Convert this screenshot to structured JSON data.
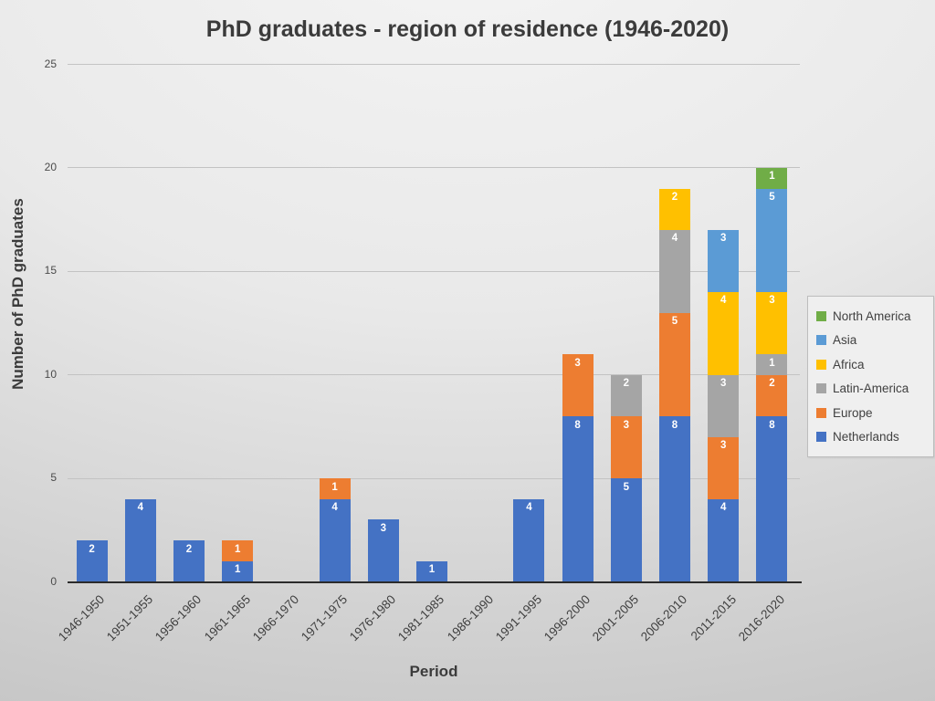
{
  "chart_data": {
    "type": "bar",
    "stacked": true,
    "title": "PhD graduates - region of residence (1946-2020)",
    "xlabel": "Period",
    "ylabel": "Number of PhD graduates",
    "ylim": [
      0,
      25
    ],
    "yticks": [
      0,
      5,
      10,
      15,
      20,
      25
    ],
    "grid": true,
    "data_labels": "inside-end, white, zeros hidden",
    "categories": [
      "1946-1950",
      "1951-1955",
      "1956-1960",
      "1961-1965",
      "1966-1970",
      "1971-1975",
      "1976-1980",
      "1981-1985",
      "1986-1990",
      "1991-1995",
      "1996-2000",
      "2001-2005",
      "2006-2010",
      "2011-2015",
      "2016-2020"
    ],
    "series": [
      {
        "name": "Netherlands",
        "color": "#4472C4",
        "values": [
          2,
          4,
          2,
          1,
          0,
          4,
          3,
          1,
          0,
          4,
          8,
          5,
          8,
          4,
          8
        ]
      },
      {
        "name": "Europe",
        "color": "#ED7D31",
        "values": [
          0,
          0,
          0,
          1,
          0,
          1,
          0,
          0,
          0,
          0,
          3,
          3,
          5,
          3,
          2
        ]
      },
      {
        "name": "Latin-America",
        "color": "#A5A5A5",
        "values": [
          0,
          0,
          0,
          0,
          0,
          0,
          0,
          0,
          0,
          0,
          0,
          2,
          4,
          3,
          1
        ]
      },
      {
        "name": "Africa",
        "color": "#FFC000",
        "values": [
          0,
          0,
          0,
          0,
          0,
          0,
          0,
          0,
          0,
          0,
          0,
          0,
          2,
          4,
          3
        ]
      },
      {
        "name": "Asia",
        "color": "#5B9BD5",
        "values": [
          0,
          0,
          0,
          0,
          0,
          0,
          0,
          0,
          0,
          0,
          0,
          0,
          0,
          3,
          5
        ]
      },
      {
        "name": "North America",
        "color": "#70AD47",
        "values": [
          0,
          0,
          0,
          0,
          0,
          0,
          0,
          0,
          0,
          0,
          0,
          0,
          0,
          0,
          1
        ]
      }
    ],
    "legend": {
      "position": "right",
      "entries_top_to_bottom": [
        "North America",
        "Asia",
        "Africa",
        "Latin-America",
        "Europe",
        "Netherlands"
      ]
    }
  }
}
